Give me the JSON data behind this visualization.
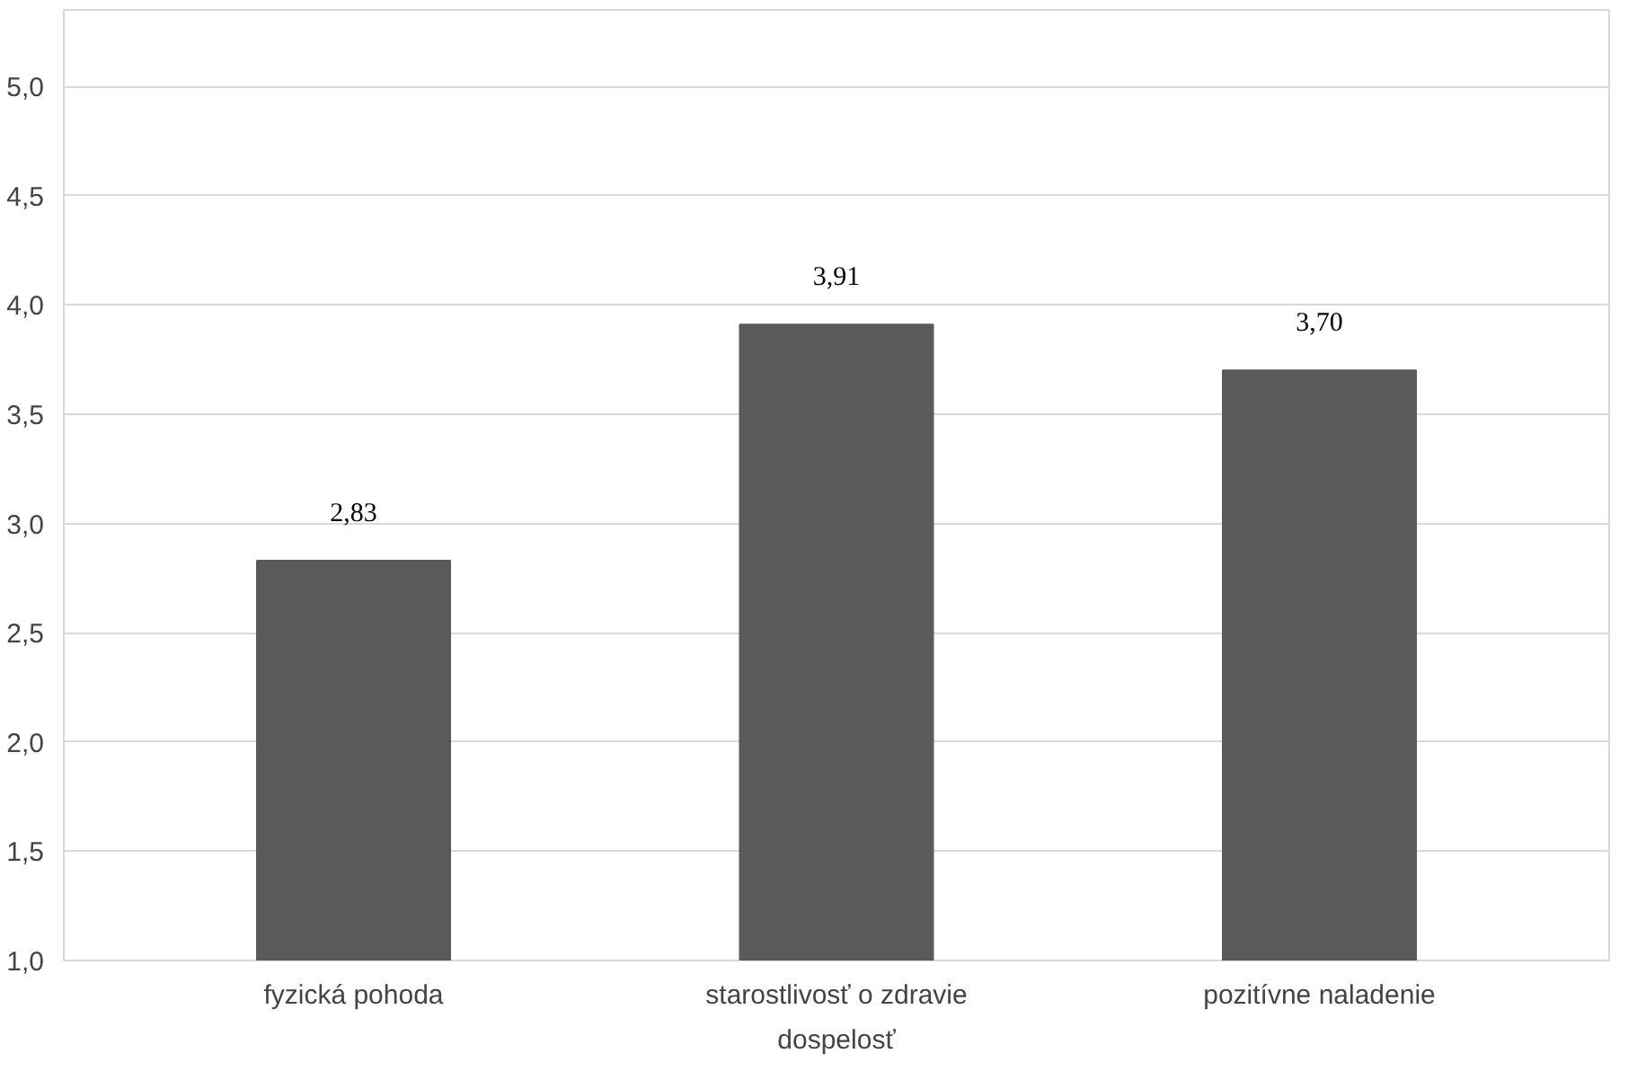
{
  "chart_data": {
    "type": "bar",
    "xlabel": "dospelosť",
    "categories": [
      "fyzická pohoda",
      "starostlivosť o zdravie",
      "pozitívne naladenie"
    ],
    "values": [
      2.83,
      3.91,
      3.7
    ],
    "value_labels": [
      "2,83",
      "3,91",
      "3,70"
    ],
    "color": "#5a5a5a",
    "ylim": [
      1,
      5
    ],
    "yticks": [
      {
        "value": 1,
        "label": "1,0"
      },
      {
        "value": 1.5,
        "label": "1,5"
      },
      {
        "value": 2,
        "label": "2,0"
      },
      {
        "value": 2.5,
        "label": "2,5"
      },
      {
        "value": 3,
        "label": "3,0"
      },
      {
        "value": 3.5,
        "label": "3,5"
      },
      {
        "value": 4,
        "label": "4,0"
      },
      {
        "value": 4.5,
        "label": "4,5"
      },
      {
        "value": 5,
        "label": "5,0"
      }
    ],
    "grid": "y"
  }
}
